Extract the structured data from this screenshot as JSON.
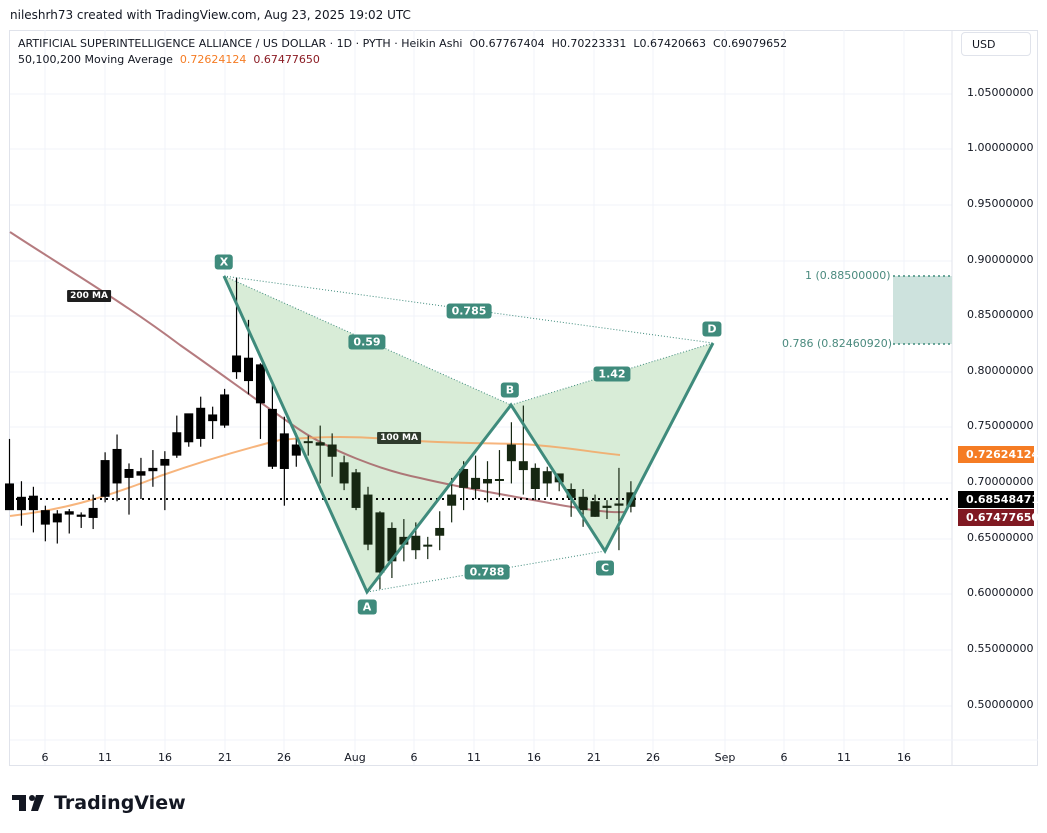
{
  "credit": "nileshrh73 created with TradingView.com, Aug 23, 2025 19:02 UTC",
  "legend": {
    "symbol_line": "ARTIFICIAL SUPERINTELLIGENCE ALLIANCE / US DOLLAR · 1D · PYTH · Heikin Ashi",
    "open": "O0.67767404",
    "high": "H0.70223331",
    "low": "L0.67420663",
    "close": "C0.69079652",
    "ma_title": "50,100,200 Moving Average",
    "ma_100": "0.72624124",
    "ma_200": "0.67477650"
  },
  "currency_button": "USD",
  "price_axis": {
    "ticks": [
      "1.05000000",
      "1.00000000",
      "0.95000000",
      "0.90000000",
      "0.85000000",
      "0.80000000",
      "0.75000000",
      "0.70000000",
      "0.65000000",
      "0.60000000",
      "0.55000000",
      "0.50000000"
    ],
    "labels": {
      "ma100": {
        "text": "0.72624124",
        "color": "#f57c24"
      },
      "last": {
        "text": "0.68548471",
        "color": "#000000"
      },
      "ma200": {
        "text": "0.67477650",
        "color": "#801922"
      }
    }
  },
  "time_axis": [
    "6",
    "11",
    "16",
    "21",
    "26",
    "Aug",
    "6",
    "11",
    "16",
    "21",
    "26",
    "Sep",
    "6",
    "11",
    "16"
  ],
  "pattern": {
    "points": {
      "X": "X",
      "A": "A",
      "B": "B",
      "C": "C",
      "D": "D"
    },
    "ratios": {
      "xb": "0.59",
      "xd": "0.785",
      "ac": "0.788",
      "bd": "1.42"
    },
    "fib_top": "1 (0.88500000)",
    "fib_bottom": "0.786 (0.82460920)",
    "color": "#3f8b7c",
    "fill": "#d6ebd5"
  },
  "ma_labels": {
    "ma200": "200 MA",
    "ma100": "100 MA"
  },
  "brand": "TradingView",
  "chart_data": {
    "type": "candlestick",
    "title": "ARTIFICIAL SUPERINTELLIGENCE ALLIANCE / US DOLLAR · 1D · PYTH · Heikin Ashi",
    "ylabel": "USD",
    "ylim": [
      0.47,
      1.08
    ],
    "grid": true,
    "x_ticks": [
      "6",
      "11",
      "16",
      "21",
      "26",
      "Aug",
      "6",
      "11",
      "16",
      "21",
      "26",
      "Sep",
      "6",
      "11",
      "16"
    ],
    "series": [
      {
        "name": "Heikin Ashi candles (approx. O,H,L,C)",
        "values": [
          [
            0.676,
            0.74,
            0.685,
            0.7
          ],
          [
            0.688,
            0.702,
            0.662,
            0.676
          ],
          [
            0.689,
            0.697,
            0.656,
            0.676
          ],
          [
            0.676,
            0.68,
            0.648,
            0.663
          ],
          [
            0.673,
            0.676,
            0.646,
            0.665
          ],
          [
            0.675,
            0.677,
            0.655,
            0.672
          ],
          [
            0.672,
            0.674,
            0.66,
            0.67
          ],
          [
            0.669,
            0.69,
            0.659,
            0.678
          ],
          [
            0.688,
            0.728,
            0.683,
            0.721
          ],
          [
            0.731,
            0.744,
            0.684,
            0.7
          ],
          [
            0.713,
            0.718,
            0.672,
            0.705
          ],
          [
            0.707,
            0.723,
            0.686,
            0.711
          ],
          [
            0.711,
            0.73,
            0.697,
            0.714
          ],
          [
            0.716,
            0.729,
            0.676,
            0.722
          ],
          [
            0.725,
            0.761,
            0.723,
            0.746
          ],
          [
            0.737,
            0.757,
            0.733,
            0.763
          ],
          [
            0.74,
            0.778,
            0.733,
            0.768
          ],
          [
            0.762,
            0.769,
            0.74,
            0.756
          ],
          [
            0.752,
            0.785,
            0.75,
            0.78
          ],
          [
            0.8,
            0.885,
            0.794,
            0.815
          ],
          [
            0.813,
            0.847,
            0.78,
            0.792
          ],
          [
            0.807,
            0.808,
            0.74,
            0.772
          ],
          [
            0.767,
            0.789,
            0.713,
            0.715
          ],
          [
            0.745,
            0.76,
            0.68,
            0.713
          ],
          [
            0.735,
            0.745,
            0.715,
            0.725
          ],
          [
            0.738,
            0.743,
            0.725,
            0.737
          ],
          [
            0.737,
            0.752,
            0.7,
            0.734
          ],
          [
            0.735,
            0.745,
            0.706,
            0.724
          ],
          [
            0.719,
            0.725,
            0.694,
            0.7
          ],
          [
            0.71,
            0.713,
            0.676,
            0.678
          ],
          [
            0.69,
            0.697,
            0.64,
            0.645
          ],
          [
            0.674,
            0.675,
            0.605,
            0.62
          ],
          [
            0.66,
            0.665,
            0.615,
            0.63
          ],
          [
            0.652,
            0.668,
            0.63,
            0.645
          ],
          [
            0.653,
            0.665,
            0.632,
            0.64
          ],
          [
            0.645,
            0.652,
            0.632,
            0.645
          ],
          [
            0.653,
            0.675,
            0.64,
            0.66
          ],
          [
            0.68,
            0.705,
            0.665,
            0.69
          ],
          [
            0.696,
            0.72,
            0.676,
            0.713
          ],
          [
            0.705,
            0.725,
            0.686,
            0.695
          ],
          [
            0.7,
            0.72,
            0.683,
            0.704
          ],
          [
            0.703,
            0.73,
            0.688,
            0.704
          ],
          [
            0.735,
            0.755,
            0.7,
            0.72
          ],
          [
            0.72,
            0.77,
            0.69,
            0.712
          ],
          [
            0.714,
            0.718,
            0.685,
            0.695
          ],
          [
            0.711,
            0.715,
            0.688,
            0.7
          ],
          [
            0.701,
            0.705,
            0.693,
            0.709
          ],
          [
            0.695,
            0.7,
            0.67,
            0.687
          ],
          [
            0.688,
            0.695,
            0.661,
            0.676
          ],
          [
            0.684,
            0.69,
            0.67,
            0.67
          ],
          [
            0.678,
            0.685,
            0.668,
            0.68
          ],
          [
            0.68,
            0.714,
            0.64,
            0.682
          ],
          [
            0.692,
            0.702,
            0.674,
            0.679
          ]
        ]
      },
      {
        "name": "100 MA",
        "color": "#f5a25c",
        "last": 0.72624124
      },
      {
        "name": "200 MA",
        "color": "#a35a5f",
        "last": 0.6747765
      }
    ],
    "harmonic_pattern": {
      "X": {
        "date": "Jul 21",
        "price": 0.885
      },
      "A": {
        "date": "Aug 2",
        "price": 0.604
      },
      "B": {
        "date": "Aug 14",
        "price": 0.77
      },
      "C": {
        "date": "Aug 22",
        "price": 0.64
      },
      "D": {
        "date": "Aug 30",
        "price": 0.8246
      },
      "ratios": {
        "XB": 0.59,
        "XD": 0.785,
        "AC": 0.788,
        "BD": 1.42
      },
      "target_zone": {
        "top": 0.885,
        "bottom": 0.8246092,
        "labels": [
          "1 (0.88500000)",
          "0.786 (0.82460920)"
        ]
      }
    },
    "last_price": 0.68548471
  }
}
